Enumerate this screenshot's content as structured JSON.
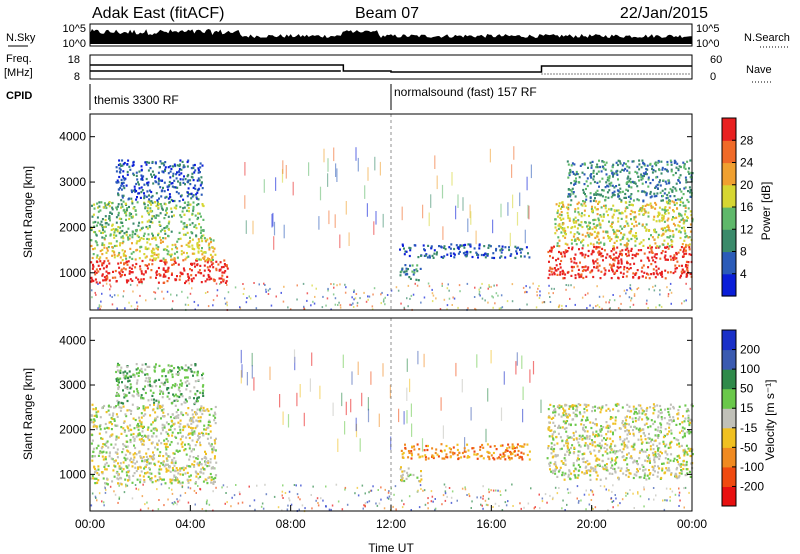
{
  "header": {
    "station": "Adak East (fitACF)",
    "beam": "Beam 07",
    "date": "22/Jan/2015"
  },
  "small_panels": {
    "nsky_label": "N.Sky",
    "nsearch_label": "N.Search",
    "nsky_ticks": [
      "10^5",
      "10^0"
    ],
    "nsky_right_ticks": [
      "10^5",
      "10^0"
    ],
    "freq_label_1": "Freq.",
    "freq_label_2": "[MHz]",
    "freq_ticks": [
      "18",
      "8"
    ],
    "nave_label": "Nave",
    "nave_ticks": [
      "60",
      "0"
    ],
    "cpid_label": "CPID",
    "cpid_segments": [
      {
        "label": "themis 3300 RF",
        "start_hour": 0,
        "end_hour": 12
      },
      {
        "label": "normalsound (fast) 157 RF",
        "start_hour": 12,
        "end_hour": 24
      }
    ]
  },
  "chart_data": [
    {
      "type": "heatmap",
      "title": "",
      "xlabel": "",
      "ylabel": "Slant Range [km]",
      "xlim": [
        0,
        24
      ],
      "ylim": [
        180,
        4500
      ],
      "yticks": [
        "1000",
        "2000",
        "3000",
        "4000"
      ],
      "colorbar": {
        "label": "Power [dB]",
        "ticks": [
          "4",
          "8",
          "12",
          "16",
          "20",
          "24",
          "28"
        ],
        "colors": [
          "#0a1ed8",
          "#2b5bb8",
          "#3a8a6a",
          "#5fb86a",
          "#d6d632",
          "#f0a030",
          "#f06a28",
          "#e82020"
        ]
      },
      "regions": [
        {
          "t": [
            0.0,
            5.5
          ],
          "r": [
            800,
            1300
          ],
          "level": 7
        },
        {
          "t": [
            0.0,
            5.0
          ],
          "r": [
            1300,
            1800
          ],
          "level": 4
        },
        {
          "t": [
            0.0,
            4.5
          ],
          "r": [
            1800,
            2600
          ],
          "level": 3
        },
        {
          "t": [
            1.0,
            4.5
          ],
          "r": [
            2600,
            3500
          ],
          "level": 1
        },
        {
          "t": [
            12.3,
            13.2
          ],
          "r": [
            850,
            1200
          ],
          "level": 2
        },
        {
          "t": [
            12.3,
            17.5
          ],
          "r": [
            1350,
            1650
          ],
          "level": 1
        },
        {
          "t": [
            18.2,
            24.0
          ],
          "r": [
            900,
            1600
          ],
          "level": 7
        },
        {
          "t": [
            18.5,
            24.0
          ],
          "r": [
            1600,
            2600
          ],
          "level": 4
        },
        {
          "t": [
            19.0,
            24.0
          ],
          "r": [
            2600,
            3500
          ],
          "level": 2
        }
      ]
    },
    {
      "type": "heatmap",
      "title": "",
      "xlabel": "Time UT",
      "ylabel": "Slant Range [km]",
      "xlim": [
        0,
        24
      ],
      "ylim": [
        180,
        4500
      ],
      "xticks": [
        "00:00",
        "04:00",
        "08:00",
        "12:00",
        "16:00",
        "20:00",
        "00:00"
      ],
      "yticks": [
        "1000",
        "2000",
        "3000",
        "4000"
      ],
      "colorbar": {
        "label": "Velocity [m s⁻¹]",
        "ticks": [
          "200",
          "100",
          "50",
          "15",
          "-15",
          "-50",
          "-100",
          "-200"
        ],
        "colors": [
          "#1a30c8",
          "#3a5ab0",
          "#2f8a4a",
          "#6ac84a",
          "#c0c0b8",
          "#f0c020",
          "#f08a20",
          "#f04a10",
          "#e81010"
        ]
      },
      "regions": [
        {
          "t": [
            0.0,
            5.0
          ],
          "r": [
            800,
            2600
          ],
          "level": 4
        },
        {
          "t": [
            1.0,
            4.5
          ],
          "r": [
            2600,
            3500
          ],
          "level": 3
        },
        {
          "t": [
            12.3,
            13.2
          ],
          "r": [
            850,
            1200
          ],
          "level": 4
        },
        {
          "t": [
            12.3,
            17.5
          ],
          "r": [
            1350,
            1700
          ],
          "level": 6
        },
        {
          "t": [
            18.2,
            24.0
          ],
          "r": [
            900,
            2600
          ],
          "level": 4
        }
      ]
    }
  ]
}
